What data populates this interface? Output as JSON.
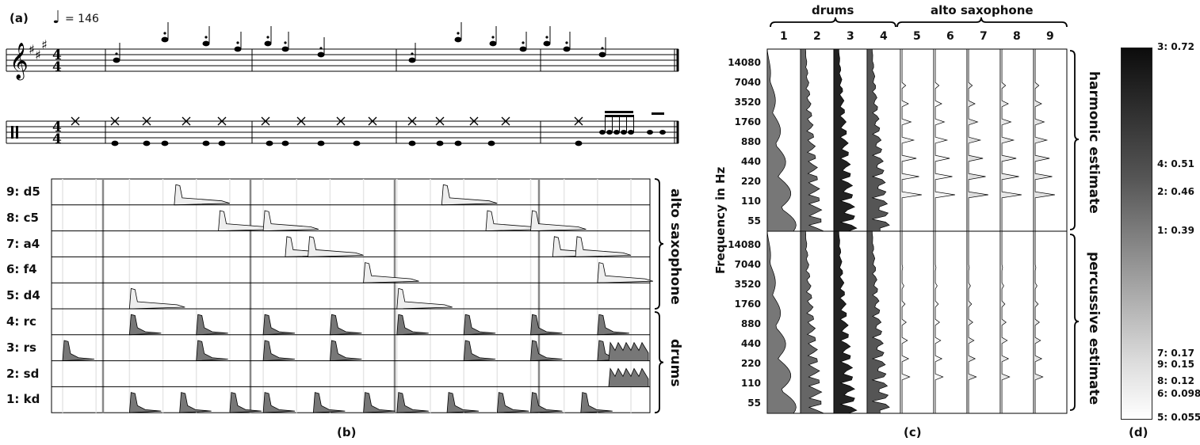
{
  "panel_labels": {
    "a": "(a)",
    "b": "(b)",
    "c": "(c)",
    "d": "(d)"
  },
  "tempo": "= 146",
  "score_panel": {
    "sax_rows": [
      {
        "label": "9: d5",
        "onsets": [
          1.67,
          5.67
        ]
      },
      {
        "label": "8: c5",
        "onsets": [
          2.33,
          3.0,
          6.33,
          7.0
        ]
      },
      {
        "label": "7: a4",
        "onsets": [
          3.33,
          3.67,
          7.33,
          7.67
        ]
      },
      {
        "label": "6: f4",
        "onsets": [
          4.5,
          8.0
        ]
      },
      {
        "label": "5: d4",
        "onsets": [
          1.0,
          5.0
        ]
      }
    ],
    "drum_rows": [
      {
        "label": "4: rc",
        "onsets": [
          1.0,
          2.0,
          3.0,
          4.0,
          5.0,
          6.0,
          7.0,
          8.0
        ]
      },
      {
        "label": "3: rs",
        "onsets": [
          0.0,
          2.0,
          3.0,
          4.0,
          6.0,
          7.0,
          8.0
        ]
      },
      {
        "label": "2: sd",
        "onsets": []
      },
      {
        "label": "1: kd",
        "onsets": [
          1.0,
          1.75,
          2.5,
          3.0,
          3.75,
          4.5,
          5.0,
          5.75,
          6.5,
          7.0,
          7.75
        ]
      }
    ],
    "group_labels": {
      "sax": "alto saxophone",
      "drums": "drums"
    }
  },
  "spectra_panel": {
    "header_drums": "drums",
    "header_sax": "alto saxophone",
    "columns": [
      "1",
      "2",
      "3",
      "4",
      "5",
      "6",
      "7",
      "8",
      "9"
    ],
    "y_axis_label": "Frequency in Hz",
    "freq_ticks": [
      "14080",
      "7040",
      "3520",
      "1760",
      "880",
      "440",
      "220",
      "110",
      "55"
    ],
    "section_labels": {
      "top": "harmonic estimate",
      "bottom": "percussive estimate"
    }
  },
  "colorbar": {
    "ticks": [
      {
        "label": "3: 0.72",
        "value": 0.72
      },
      {
        "label": "4: 0.51",
        "value": 0.51
      },
      {
        "label": "2: 0.46",
        "value": 0.46
      },
      {
        "label": "1: 0.39",
        "value": 0.39
      },
      {
        "label": "7: 0.17",
        "value": 0.17
      },
      {
        "label": "9: 0.15",
        "value": 0.15
      },
      {
        "label": "8: 0.12",
        "value": 0.12
      },
      {
        "label": "6: 0.098",
        "value": 0.098
      },
      {
        "label": "5: 0.055",
        "value": 0.055
      }
    ]
  }
}
